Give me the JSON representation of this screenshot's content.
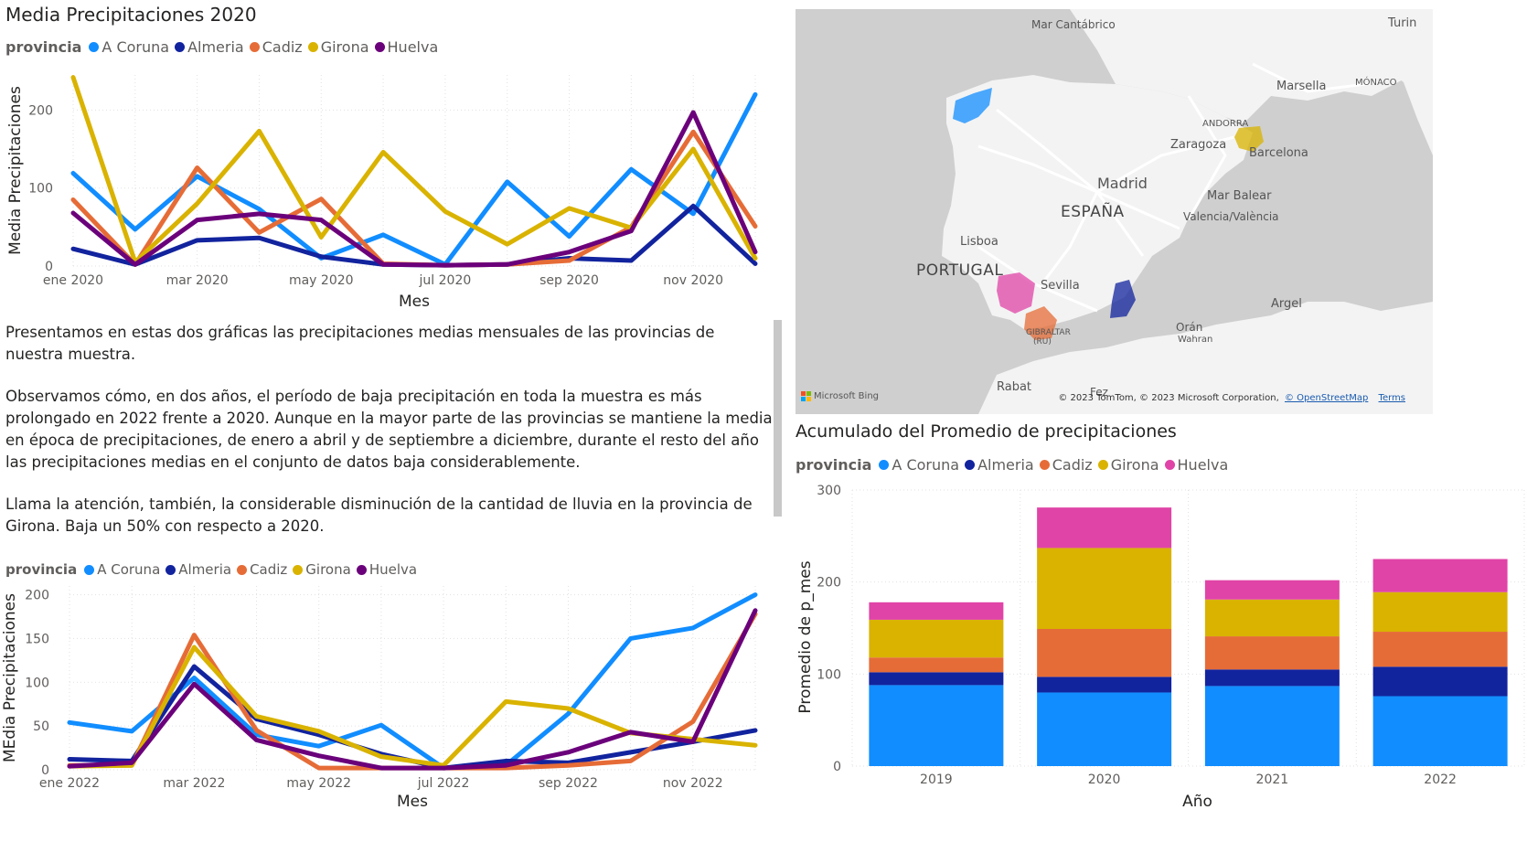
{
  "colors": {
    "A Coruna": "#118DFF",
    "Almeria": "#12239E",
    "Cadiz": "#E66C37",
    "Girona": "#D9B300",
    "Huelva_line": "#6B007B",
    "Huelva_bar": "#E044A7"
  },
  "chart1": {
    "title": "Media Precipitaciones 2020",
    "legend_title": "provincia",
    "legend": [
      "A Coruna",
      "Almeria",
      "Cadiz",
      "Girona",
      "Huelva"
    ]
  },
  "chart2": {
    "legend_title": "provincia",
    "legend": [
      "A Coruna",
      "Almeria",
      "Cadiz",
      "Girona",
      "Huelva"
    ]
  },
  "chart3": {
    "title": "Acumulado del Promedio de precipitaciones",
    "legend_title": "provincia",
    "legend": [
      "A Coruna",
      "Almeria",
      "Cadiz",
      "Girona",
      "Huelva"
    ]
  },
  "narrative": [
    "Presentamos en estas dos gráficas las precipitaciones medias mensuales de las provincias de nuestra muestra.",
    "Observamos cómo, en dos años, el período de baja precipitación en toda la muestra es más prolongado en 2022 frente a 2020. Aunque en la mayor parte de las provincias se mantiene la media en época de precipitaciones, de enero a abril y de septiembre a diciembre, durante el resto del año las precipitaciones medias en el conjunto de datos baja considerablemente.",
    "Llama la atención, también, la considerable disminución de la cantidad de lluvia en la provincia de Girona. Baja un 50% con respecto a 2020."
  ],
  "map": {
    "labels": {
      "cantabrico": "Mar Cantábrico",
      "turin": "Turin",
      "marsella": "Marsella",
      "monaco": "MÓNACO",
      "andorra": "ANDORRA",
      "zaragoza": "Zaragoza",
      "barcelona": "Barcelona",
      "madrid": "Madrid",
      "espana": "ESPAÑA",
      "balear": "Mar Balear",
      "valencia": "Valencia/València",
      "lisboa": "Lisboa",
      "portugal": "PORTUGAL",
      "sevilla": "Sevilla",
      "gibraltar": "GIBRALTAR",
      "gibraltar_uk": "(RU)",
      "argel": "Argel",
      "oran": "Orán",
      "wahran": "Wahran",
      "rabat": "Rabat",
      "fez": "Fez"
    },
    "attribution": "© 2023 TomTom, © 2023 Microsoft Corporation,",
    "osm": "© OpenStreetMap",
    "terms": "Terms",
    "bing": "Microsoft Bing"
  },
  "chart_data": [
    {
      "type": "line",
      "title": "Media Precipitaciones 2020",
      "xlabel": "Mes",
      "ylabel": "Media Precipitaciones",
      "x_ticks": [
        "ene 2020",
        "mar 2020",
        "may 2020",
        "jul 2020",
        "sep 2020",
        "nov 2020"
      ],
      "y_ticks": [
        0,
        100,
        200
      ],
      "ylim": [
        0,
        245
      ],
      "x": [
        "2020-01",
        "2020-02",
        "2020-03",
        "2020-04",
        "2020-05",
        "2020-06",
        "2020-07",
        "2020-08",
        "2020-09",
        "2020-10",
        "2020-11",
        "2020-12"
      ],
      "series": [
        {
          "name": "A Coruna",
          "values": [
            119,
            47,
            115,
            73,
            10,
            40,
            2,
            108,
            38,
            124,
            67,
            220
          ]
        },
        {
          "name": "Almeria",
          "values": [
            22,
            2,
            33,
            36,
            12,
            2,
            1,
            2,
            10,
            7,
            77,
            3
          ]
        },
        {
          "name": "Cadiz",
          "values": [
            85,
            2,
            126,
            43,
            86,
            3,
            1,
            2,
            7,
            50,
            172,
            51
          ]
        },
        {
          "name": "Girona",
          "values": [
            242,
            5,
            80,
            173,
            37,
            146,
            70,
            28,
            74,
            49,
            150,
            10
          ]
        },
        {
          "name": "Huelva",
          "values": [
            68,
            2,
            59,
            67,
            59,
            2,
            1,
            2,
            18,
            45,
            197,
            18
          ]
        }
      ]
    },
    {
      "type": "line",
      "xlabel": "Mes",
      "ylabel": "MEdia Precipitaciones",
      "x_ticks": [
        "ene 2022",
        "mar 2022",
        "may 2022",
        "jul 2022",
        "sep 2022",
        "nov 2022"
      ],
      "y_ticks": [
        0,
        50,
        100,
        150,
        200
      ],
      "ylim": [
        0,
        210
      ],
      "x": [
        "2022-01",
        "2022-02",
        "2022-03",
        "2022-04",
        "2022-05",
        "2022-06",
        "2022-07",
        "2022-08",
        "2022-09",
        "2022-10",
        "2022-11",
        "2022-12"
      ],
      "series": [
        {
          "name": "A Coruna",
          "values": [
            54,
            44,
            105,
            40,
            27,
            51,
            2,
            5,
            64,
            150,
            162,
            200
          ]
        },
        {
          "name": "Almeria",
          "values": [
            12,
            10,
            118,
            58,
            40,
            18,
            2,
            10,
            8,
            20,
            32,
            45
          ]
        },
        {
          "name": "Cadiz",
          "values": [
            5,
            5,
            154,
            45,
            2,
            2,
            2,
            2,
            5,
            10,
            55,
            178
          ]
        },
        {
          "name": "Girona",
          "values": [
            4,
            5,
            140,
            61,
            44,
            15,
            5,
            78,
            70,
            42,
            35,
            28
          ]
        },
        {
          "name": "Huelva",
          "values": [
            4,
            8,
            98,
            34,
            16,
            2,
            2,
            5,
            20,
            43,
            32,
            182
          ]
        }
      ]
    },
    {
      "type": "bar",
      "stacked": true,
      "title": "Acumulado del Promedio de precipitaciones",
      "xlabel": "Año",
      "ylabel": "Promedio de p_mes",
      "categories": [
        "2019",
        "2020",
        "2021",
        "2022"
      ],
      "y_ticks": [
        0,
        100,
        200,
        300
      ],
      "ylim": [
        0,
        300
      ],
      "series": [
        {
          "name": "A Coruna",
          "values": [
            88,
            80,
            87,
            76
          ]
        },
        {
          "name": "Almeria",
          "values": [
            14,
            17,
            18,
            32
          ]
        },
        {
          "name": "Cadiz",
          "values": [
            16,
            52,
            36,
            38
          ]
        },
        {
          "name": "Girona",
          "values": [
            41,
            88,
            40,
            43
          ]
        },
        {
          "name": "Huelva",
          "values": [
            19,
            44,
            21,
            36
          ]
        }
      ]
    }
  ]
}
